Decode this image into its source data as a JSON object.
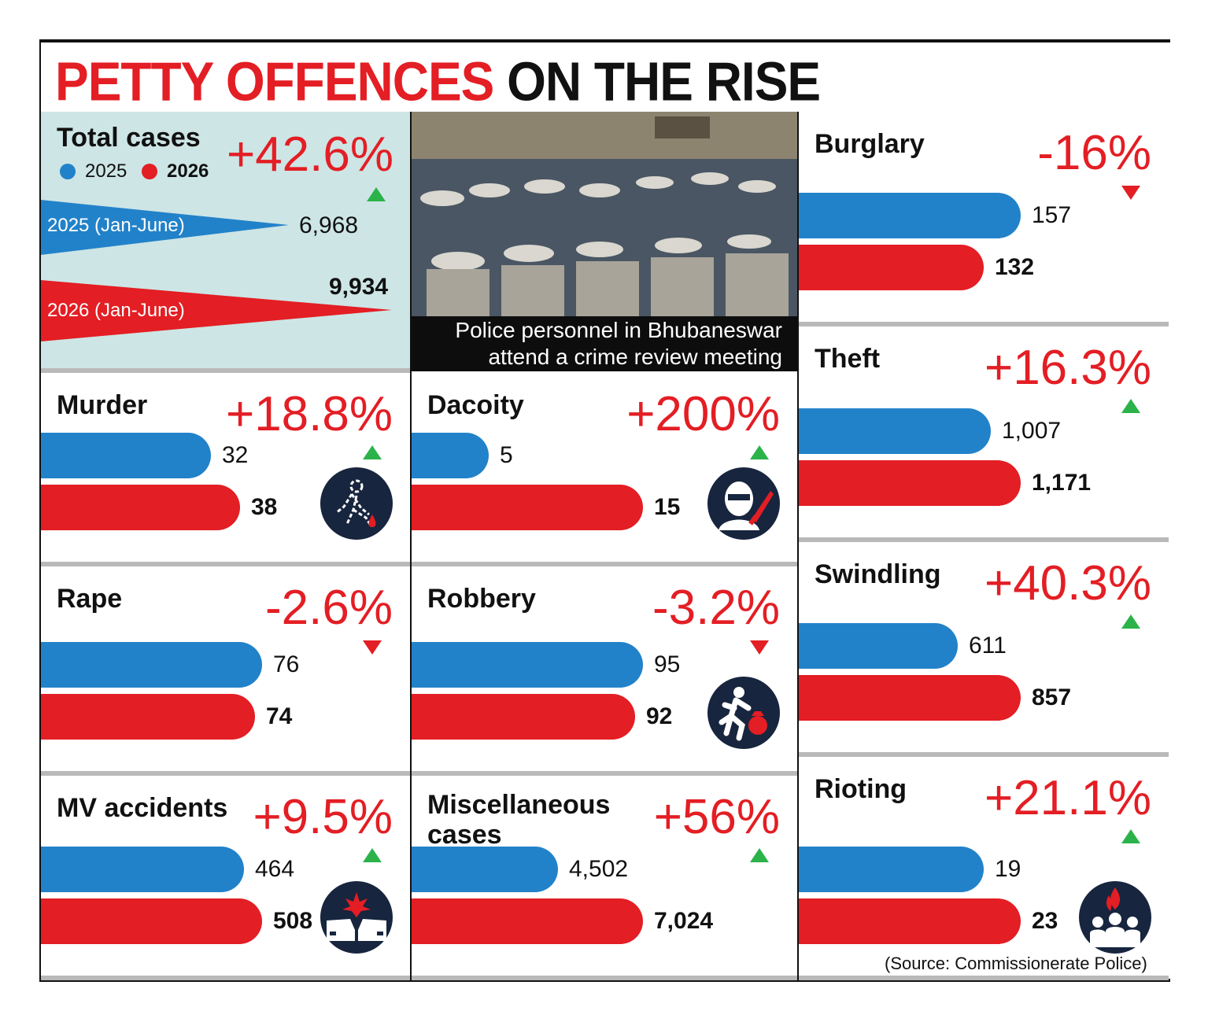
{
  "title": {
    "part1": "PETTY OFFENCES",
    "part2": "ON THE RISE"
  },
  "colors": {
    "y2025": "#2282c9",
    "y2026": "#e31e24",
    "up": "#2bb34a",
    "down": "#e31e24",
    "accent": "#e31e24"
  },
  "total": {
    "label": "Total cases",
    "legend_2025": "2025",
    "legend_2026": "2026",
    "pct": "+42.6%",
    "row_2025_label": "2025 (Jan-June)",
    "row_2025_value": "6,968",
    "row_2026_label": "2026 (Jan-June)",
    "row_2026_value": "9,934"
  },
  "photo": {
    "caption_line1": "Police personnel in Bhubaneswar",
    "caption_line2": "attend a crime review meeting"
  },
  "source": "(Source: Commissionerate Police)",
  "chart_data": {
    "type": "bar",
    "title": "PETTY OFFENCES ON THE RISE",
    "series": [
      {
        "name": "2025",
        "values": [
          6968,
          32,
          5,
          76,
          95,
          464,
          4502,
          157,
          1007,
          611,
          19
        ]
      },
      {
        "name": "2026",
        "values": [
          9934,
          38,
          15,
          74,
          92,
          508,
          7024,
          132,
          1171,
          857,
          23
        ]
      }
    ],
    "categories": [
      "Total cases",
      "Murder",
      "Dacoity",
      "Rape",
      "Robbery",
      "MV accidents",
      "Miscellaneous cases",
      "Burglary",
      "Theft",
      "Swindling",
      "Rioting"
    ],
    "panels": [
      {
        "key": "murder",
        "label": "Murder",
        "pct": "+18.8%",
        "dir": "up",
        "v2025": 32,
        "v2026": 38,
        "t2025": "32",
        "t2026": "38",
        "icon": "crime-scene-icon",
        "frac2025": 0.46,
        "frac2026": 0.54
      },
      {
        "key": "dacoity",
        "label": "Dacoity",
        "pct": "+200%",
        "dir": "up",
        "v2025": 5,
        "v2026": 15,
        "t2025": "5",
        "t2026": "15",
        "icon": "masked-robber-knife-icon",
        "frac2025": 0.2,
        "frac2026": 0.6
      },
      {
        "key": "rape",
        "label": "Rape",
        "pct": "-2.6%",
        "dir": "down",
        "v2025": 76,
        "v2026": 74,
        "t2025": "76",
        "t2026": "74",
        "icon": "",
        "frac2025": 0.6,
        "frac2026": 0.58
      },
      {
        "key": "robbery",
        "label": "Robbery",
        "pct": "-3.2%",
        "dir": "down",
        "v2025": 95,
        "v2026": 92,
        "t2025": "95",
        "t2026": "92",
        "icon": "running-thief-icon",
        "frac2025": 0.6,
        "frac2026": 0.58
      },
      {
        "key": "mv",
        "label": "MV accidents",
        "pct": "+9.5%",
        "dir": "up",
        "v2025": 464,
        "v2026": 508,
        "t2025": "464",
        "t2026": "508",
        "icon": "car-crash-icon",
        "frac2025": 0.55,
        "frac2026": 0.6
      },
      {
        "key": "misc",
        "label": "Miscellaneous cases",
        "pct": "+56%",
        "dir": "up",
        "v2025": 4502,
        "v2026": 7024,
        "t2025": "4,502",
        "t2026": "7,024",
        "icon": "",
        "frac2025": 0.38,
        "frac2026": 0.6
      },
      {
        "key": "burglary",
        "label": "Burglary",
        "pct": "-16%",
        "dir": "down",
        "v2025": 157,
        "v2026": 132,
        "t2025": "157",
        "t2026": "132",
        "icon": "",
        "frac2025": 0.6,
        "frac2026": 0.5
      },
      {
        "key": "theft",
        "label": "Theft",
        "pct": "+16.3%",
        "dir": "up",
        "v2025": 1007,
        "v2026": 1171,
        "t2025": "1,007",
        "t2026": "1,171",
        "icon": "",
        "frac2025": 0.52,
        "frac2026": 0.6
      },
      {
        "key": "swindling",
        "label": "Swindling",
        "pct": "+40.3%",
        "dir": "up",
        "v2025": 611,
        "v2026": 857,
        "t2025": "611",
        "t2026": "857",
        "icon": "",
        "frac2025": 0.43,
        "frac2026": 0.6
      },
      {
        "key": "rioting",
        "label": "Rioting",
        "pct": "+21.1%",
        "dir": "up",
        "v2025": 19,
        "v2026": 23,
        "t2025": "19",
        "t2026": "23",
        "icon": "rioting-crowd-fire-icon",
        "frac2025": 0.5,
        "frac2026": 0.6
      }
    ]
  }
}
